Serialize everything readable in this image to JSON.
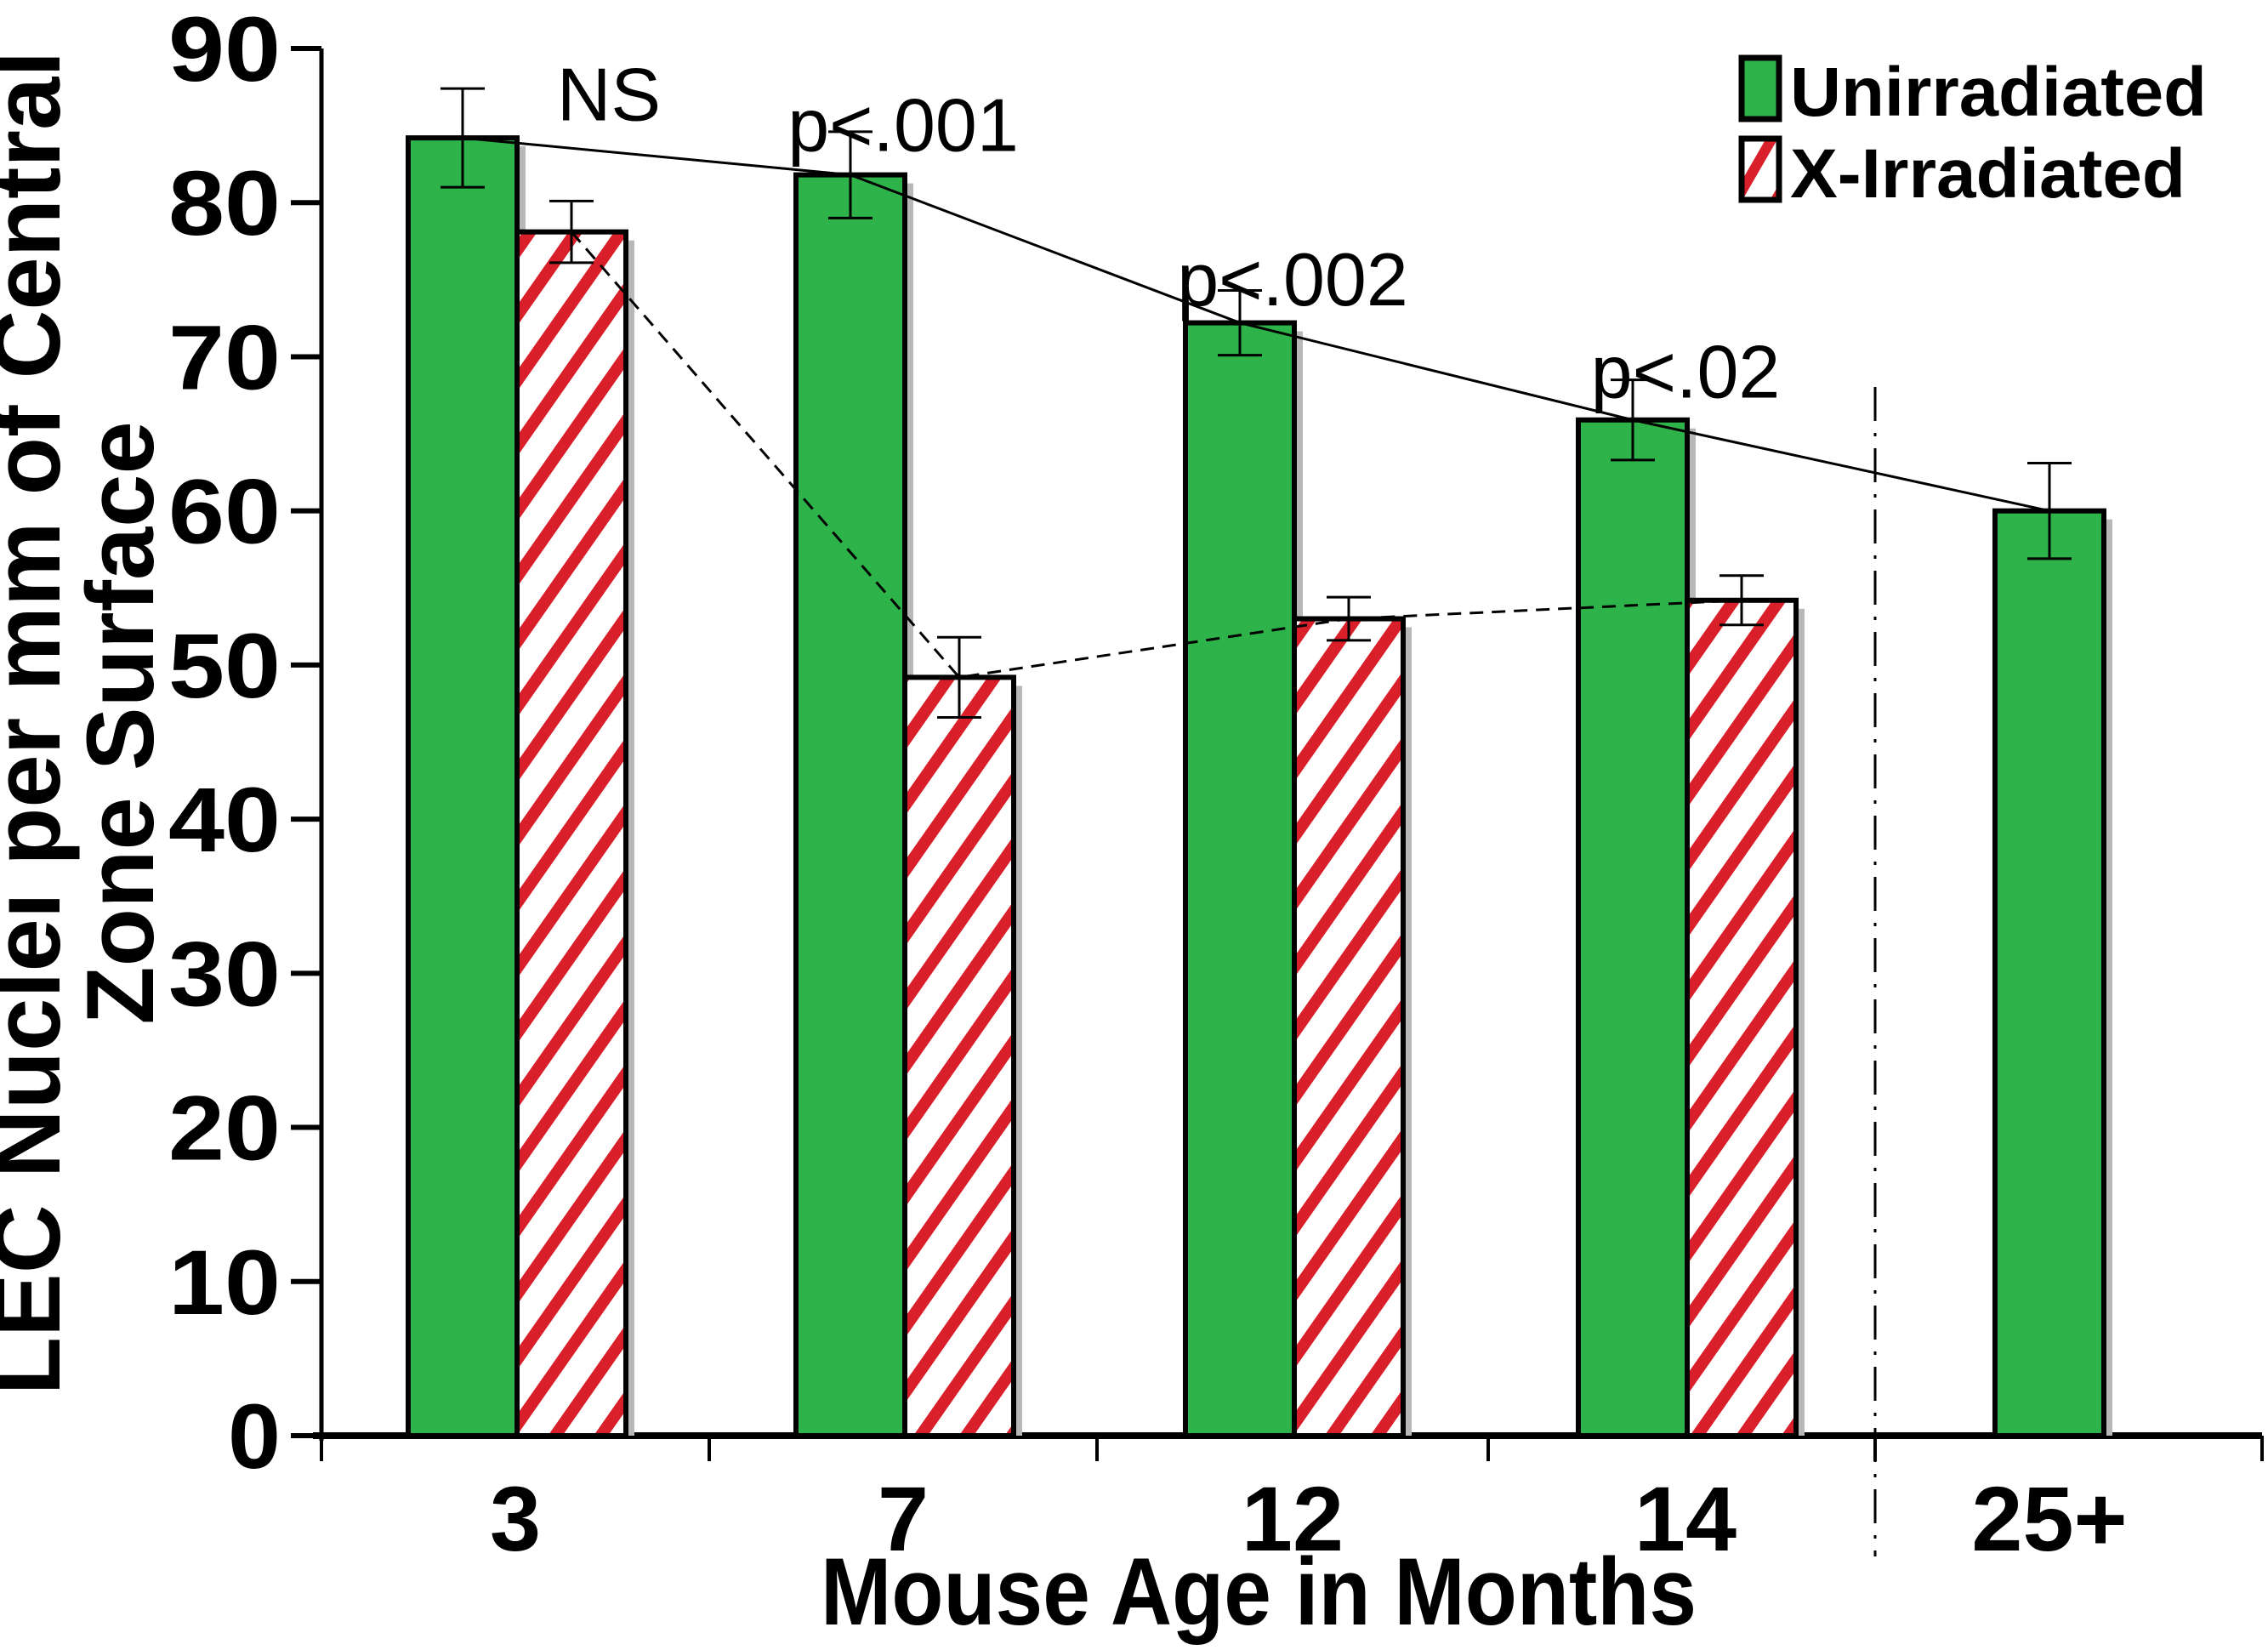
{
  "chart_data": {
    "type": "bar",
    "title": "",
    "xlabel": "Mouse Age in Months",
    "ylabel_lines": [
      "LEC Nuclei per mm of Central",
      "Zone Surface"
    ],
    "ylim": [
      0,
      90
    ],
    "yticks": [
      0,
      10,
      20,
      30,
      40,
      50,
      60,
      70,
      80,
      90
    ],
    "categories": [
      "3",
      "7",
      "12",
      "14",
      "25+"
    ],
    "legend": {
      "placement": "top-right",
      "entries": [
        "Unirradiated",
        "X-Irradiated"
      ]
    },
    "series": [
      {
        "name": "Unirradiated",
        "color": "#2db34a",
        "pattern": "solid",
        "values": [
          84.2,
          81.8,
          72.2,
          65.9,
          60.0
        ],
        "errors": [
          3.2,
          2.8,
          2.1,
          2.6,
          3.1
        ],
        "trend_line": "solid"
      },
      {
        "name": "X-Irradiated",
        "color": "#d9202a",
        "pattern": "diagonal-stripes",
        "values": [
          78.1,
          49.2,
          53.0,
          54.2,
          null
        ],
        "errors": [
          2.0,
          2.6,
          1.4,
          1.6,
          null
        ],
        "trend_line": "dashed"
      }
    ],
    "annotations": [
      {
        "category": "3",
        "text": "NS",
        "y": 87
      },
      {
        "category": "7",
        "text": "p<.001",
        "y": 85
      },
      {
        "category": "12",
        "text": "p<.002",
        "y": 75
      },
      {
        "category": "14",
        "text": "p<.02",
        "y": 69
      }
    ],
    "separator": {
      "between": [
        "14",
        "25+"
      ],
      "style": "dash-dot"
    },
    "grid": false
  }
}
